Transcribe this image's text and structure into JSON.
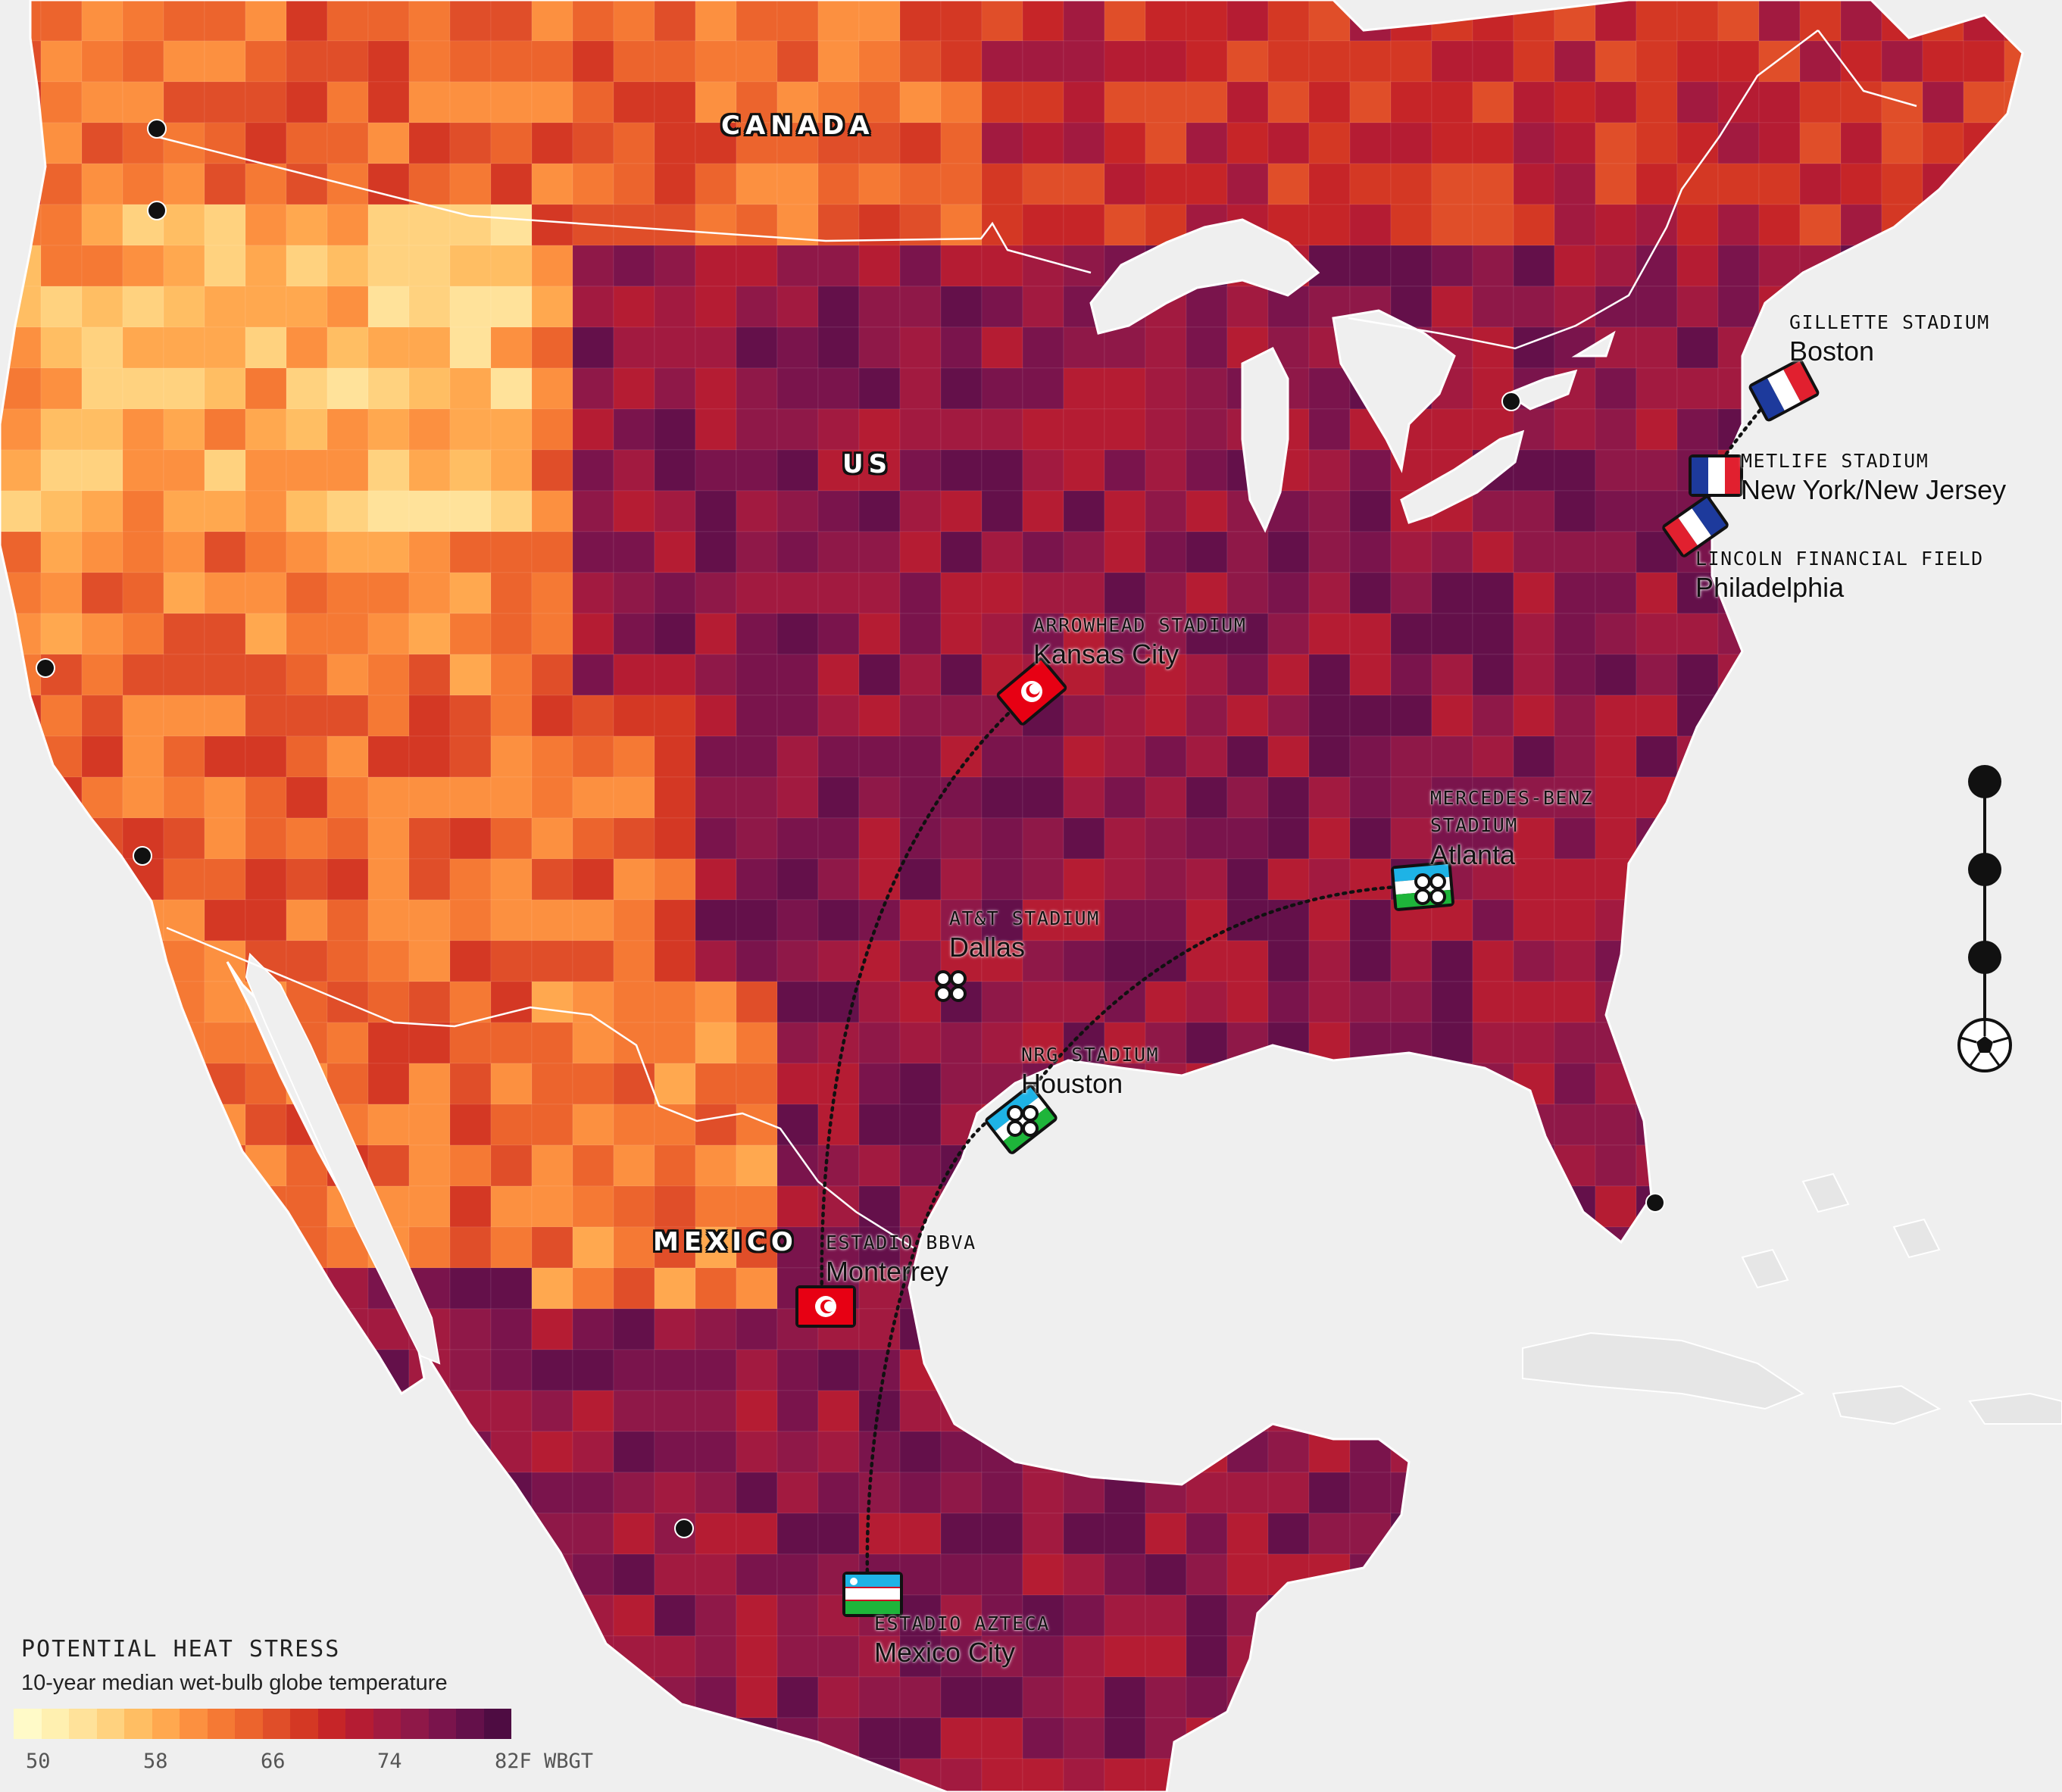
{
  "map": {
    "countries": {
      "canada": "CANADA",
      "us": "US",
      "mexico": "MEXICO"
    },
    "venues": [
      {
        "key": "boston",
        "stadium": "GILLETTE STADIUM",
        "city": "Boston"
      },
      {
        "key": "nynj",
        "stadium": "METLIFE STADIUM",
        "city": "New York/New Jersey"
      },
      {
        "key": "philadelphia",
        "stadium": "LINCOLN FINANCIAL FIELD",
        "city": "Philadelphia"
      },
      {
        "key": "kansas_city",
        "stadium": "ARROWHEAD STADIUM",
        "city": "Kansas City"
      },
      {
        "key": "atlanta",
        "stadium": "MERCEDES-BENZ STADIUM",
        "city": "Atlanta"
      },
      {
        "key": "dallas",
        "stadium": "AT&T STADIUM",
        "city": "Dallas"
      },
      {
        "key": "houston",
        "stadium": "NRG STADIUM",
        "city": "Houston"
      },
      {
        "key": "monterrey",
        "stadium": "ESTADIO BBVA",
        "city": "Monterrey"
      },
      {
        "key": "mexico_city",
        "stadium": "ESTADIO AZTECA",
        "city": "Mexico City"
      }
    ],
    "flags": [
      "france-flag",
      "tunisia-flag",
      "uzbekistan-flag",
      "basque-flag"
    ],
    "colors": {
      "land_outline": "#ffffff",
      "water": "#efefef",
      "route_line": "#111111"
    }
  },
  "legend": {
    "title": "POTENTIAL HEAT STRESS",
    "subtitle": "10-year median wet-bulb globe temperature",
    "ticks": [
      "50",
      "58",
      "66",
      "74",
      "82F WBGT"
    ],
    "colors": [
      "#fffac8",
      "#fff0b0",
      "#ffe29a",
      "#ffd27f",
      "#ffbe63",
      "#ffa84f",
      "#fc9040",
      "#f57934",
      "#ec642d",
      "#e04e29",
      "#d43824",
      "#c62528",
      "#b51c33",
      "#a21a40",
      "#8f1848",
      "#7a144c",
      "#64104a",
      "#4e0c42"
    ]
  },
  "timeline": {
    "dots": 3,
    "end_icon": "soccer-ball-icon"
  }
}
